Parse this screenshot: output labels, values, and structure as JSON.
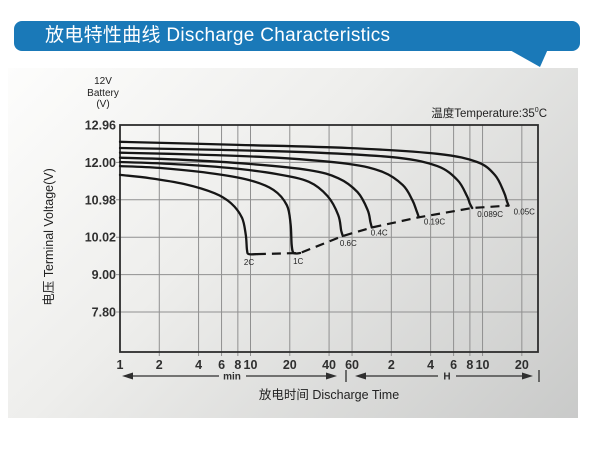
{
  "header": {
    "title": "放电特性曲线 Discharge Characteristics"
  },
  "colors": {
    "banner_bg": "#1a79b8",
    "banner_text": "#ffffff",
    "curve": "#161616",
    "grid": "#909090",
    "plot_border": "#2d2d2d",
    "text": "#2f2f2f"
  },
  "chart_data": {
    "type": "line",
    "x_scale": "log",
    "battery_label_lines": [
      "12V",
      "Battery",
      "(V)"
    ],
    "temperature_label": {
      "text": "温度Temperature:35",
      "sup": "0",
      "unit": "C"
    },
    "x_axis": {
      "title": "放电时间 Discharge Time",
      "unit_left": "min",
      "unit_right": "H",
      "ticks": [
        {
          "label": "1",
          "t_min": 1
        },
        {
          "label": "2",
          "t_min": 2
        },
        {
          "label": "4",
          "t_min": 4
        },
        {
          "label": "6",
          "t_min": 6
        },
        {
          "label": "8",
          "t_min": 8
        },
        {
          "label": "10",
          "t_min": 10
        },
        {
          "label": "20",
          "t_min": 20
        },
        {
          "label": "40",
          "t_min": 40
        },
        {
          "label": "60",
          "t_min": 60
        },
        {
          "label": "2",
          "t_min": 120
        },
        {
          "label": "4",
          "t_min": 240
        },
        {
          "label": "6",
          "t_min": 360
        },
        {
          "label": "8",
          "t_min": 480
        },
        {
          "label": "10",
          "t_min": 600
        },
        {
          "label": "20",
          "t_min": 1200
        }
      ]
    },
    "y_axis": {
      "title": "电压 Terminal Voltage(V)",
      "ticks": [
        {
          "label": "12.96",
          "v": 12.96
        },
        {
          "label": "12.00",
          "v": 12.0
        },
        {
          "label": "10.98",
          "v": 10.98
        },
        {
          "label": "10.02",
          "v": 10.02
        },
        {
          "label": "9.00",
          "v": 9.0
        },
        {
          "label": "7.80",
          "v": 7.8
        }
      ]
    },
    "series": [
      {
        "name": "2C",
        "points": [
          [
            1,
            11.66
          ],
          [
            1.7,
            11.57
          ],
          [
            3.1,
            11.41
          ],
          [
            5.3,
            11.16
          ],
          [
            7.1,
            10.89
          ],
          [
            8.6,
            10.52
          ],
          [
            9.2,
            10.08
          ],
          [
            9.4,
            9.67
          ],
          [
            9.7,
            9.56
          ],
          [
            11.2,
            9.56
          ]
        ]
      },
      {
        "name": "1C",
        "points": [
          [
            1,
            11.9
          ],
          [
            2,
            11.85
          ],
          [
            4.8,
            11.71
          ],
          [
            9.7,
            11.52
          ],
          [
            15,
            11.25
          ],
          [
            19,
            10.84
          ],
          [
            20.3,
            10.35
          ],
          [
            20.7,
            9.81
          ],
          [
            21.4,
            9.59
          ],
          [
            24,
            9.59
          ]
        ]
      },
      {
        "name": "0.6C",
        "points": [
          [
            1,
            12.01
          ],
          [
            2.4,
            11.96
          ],
          [
            6.8,
            11.85
          ],
          [
            16,
            11.68
          ],
          [
            28,
            11.47
          ],
          [
            39,
            11.08
          ],
          [
            47,
            10.59
          ],
          [
            49.5,
            10.2
          ],
          [
            51,
            10.05
          ]
        ]
      },
      {
        "name": "0.4C",
        "points": [
          [
            1,
            12.12
          ],
          [
            2.9,
            12.07
          ],
          [
            9.7,
            11.96
          ],
          [
            28,
            11.79
          ],
          [
            47,
            11.57
          ],
          [
            66,
            11.19
          ],
          [
            79,
            10.72
          ],
          [
            83,
            10.41
          ],
          [
            85,
            10.27
          ]
        ]
      },
      {
        "name": "0.19C",
        "points": [
          [
            1,
            12.25
          ],
          [
            4,
            12.2
          ],
          [
            16,
            12.12
          ],
          [
            56,
            11.96
          ],
          [
            103,
            11.74
          ],
          [
            147,
            11.38
          ],
          [
            174,
            10.97
          ],
          [
            187,
            10.7
          ],
          [
            195,
            10.53
          ]
        ]
      },
      {
        "name": "0.089C",
        "points": [
          [
            1,
            12.37
          ],
          [
            6,
            12.32
          ],
          [
            33,
            12.25
          ],
          [
            134,
            12.12
          ],
          [
            270,
            11.9
          ],
          [
            385,
            11.52
          ],
          [
            456,
            11.08
          ],
          [
            480,
            10.88
          ],
          [
            500,
            10.77
          ]
        ]
      },
      {
        "name": "0.05C",
        "points": [
          [
            1,
            12.53
          ],
          [
            8,
            12.45
          ],
          [
            56,
            12.37
          ],
          [
            270,
            12.22
          ],
          [
            545,
            12.01
          ],
          [
            745,
            11.66
          ],
          [
            875,
            11.19
          ],
          [
            920,
            10.95
          ],
          [
            950,
            10.83
          ]
        ]
      }
    ],
    "envelope": {
      "style": "dashed"
    }
  }
}
